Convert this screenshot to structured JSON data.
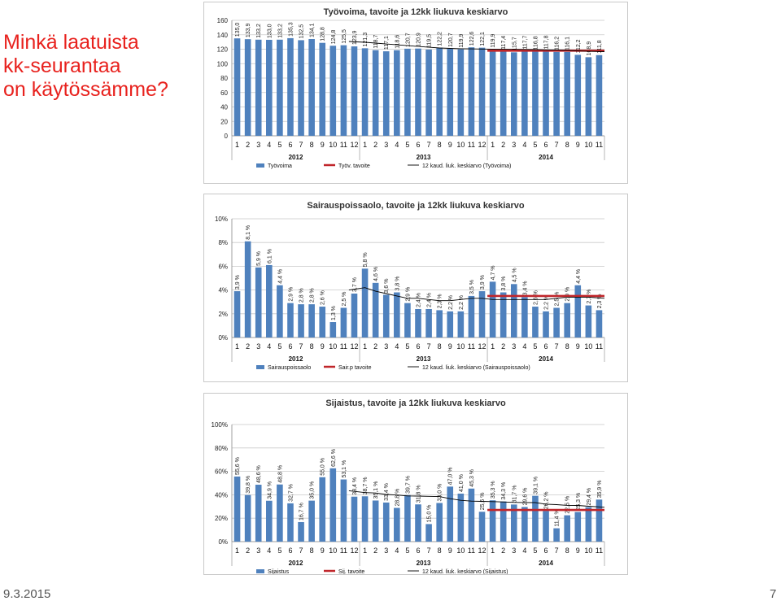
{
  "slide": {
    "title_lines": [
      "Minkä laatuista",
      "kk-seurantaa",
      "on käytössämme?"
    ],
    "date": "9.3.2015",
    "page_number": "7"
  },
  "colors": {
    "bar": "#4f81bd",
    "target": "#c0262b",
    "moving_average": "#000000",
    "grid": "#c9c9c9"
  },
  "chart_data": [
    {
      "type": "bar",
      "title": "Työvoima, tavoite ja 12kk liukuva keskiarvo",
      "months": [
        "1",
        "2",
        "3",
        "4",
        "5",
        "6",
        "7",
        "8",
        "9",
        "10",
        "11",
        "12",
        "1",
        "2",
        "3",
        "4",
        "5",
        "6",
        "7",
        "8",
        "9",
        "10",
        "11",
        "12",
        "1",
        "2",
        "3",
        "4",
        "5",
        "6",
        "7",
        "8",
        "9",
        "10",
        "11"
      ],
      "years": [
        {
          "label": "2012",
          "count": 12
        },
        {
          "label": "2013",
          "count": 12
        },
        {
          "label": "2014",
          "count": 11
        }
      ],
      "ylim": [
        0,
        160
      ],
      "yticks": [
        0,
        20,
        40,
        60,
        80,
        100,
        120,
        140,
        160
      ],
      "ytick_labels": [
        "0",
        "20",
        "40",
        "60",
        "80",
        "100",
        "120",
        "140",
        "160"
      ],
      "series": [
        {
          "name": "Työvoima",
          "kind": "bar",
          "values": [
            135.0,
            133.9,
            133.2,
            133.0,
            133.2,
            135.3,
            132.5,
            134.1,
            128.8,
            124.8,
            125.5,
            123.9,
            121.3,
            118.7,
            117.1,
            118.6,
            120.7,
            120.9,
            119.5,
            122.2,
            120.7,
            119.9,
            122.6,
            122.1,
            119.9,
            117.4,
            115.7,
            117.7,
            116.8,
            117.8,
            116.2,
            116.1,
            112.2,
            108.9,
            111.8
          ],
          "labels": [
            "135,0",
            "133,9",
            "133,2",
            "133,0",
            "133,2",
            "135,3",
            "132,5",
            "134,1",
            "128,8",
            "124,8",
            "125,5",
            "123,9",
            "121,3",
            "118,7",
            "117,1",
            "118,6",
            "120,7",
            "120,9",
            "119,5",
            "122,2",
            "120,7",
            "119,9",
            "122,6",
            "122,1",
            "119,9",
            "117,4",
            "115,7",
            "117,7",
            "116,8",
            "117,8",
            "116,2",
            "116,1",
            "112,2",
            "108,9",
            "111,8"
          ]
        },
        {
          "name": "Työv. tavoite",
          "kind": "line",
          "start_index": 24,
          "values": [
            118,
            118,
            118,
            118,
            118,
            118,
            118,
            118,
            118,
            118,
            118
          ]
        },
        {
          "name": "12 kaud. liuk. keskiarvo (Työvoima)",
          "kind": "line",
          "start_index": 11,
          "values": [
            130.7,
            129.6,
            128.4,
            127.2,
            126.1,
            125.0,
            123.8,
            122.7,
            121.7,
            121.1,
            120.7,
            120.4,
            120.2,
            120.1,
            119.9,
            119.8,
            119.7,
            119.4,
            119.1,
            118.8,
            118.2,
            117.6,
            117.1,
            116.6
          ]
        }
      ],
      "legend": [
        "Työvoima",
        "Työv. tavoite",
        "12 kaud. liuk. keskiarvo (Työvoima)"
      ]
    },
    {
      "type": "bar",
      "title": "Sairauspoissaolo, tavoite ja 12kk liukuva keskiarvo",
      "months": [
        "1",
        "2",
        "3",
        "4",
        "5",
        "6",
        "7",
        "8",
        "9",
        "10",
        "11",
        "12",
        "1",
        "2",
        "3",
        "4",
        "5",
        "6",
        "7",
        "8",
        "9",
        "10",
        "11",
        "12",
        "1",
        "2",
        "3",
        "4",
        "5",
        "6",
        "7",
        "8",
        "9",
        "10",
        "11"
      ],
      "years": [
        {
          "label": "2012",
          "count": 12
        },
        {
          "label": "2013",
          "count": 12
        },
        {
          "label": "2014",
          "count": 11
        }
      ],
      "ylim": [
        0,
        10
      ],
      "yticks": [
        0,
        2,
        4,
        6,
        8,
        10
      ],
      "ytick_labels": [
        "0%",
        "2%",
        "4%",
        "6%",
        "8%",
        "10%"
      ],
      "series": [
        {
          "name": "Sairauspoissaolo",
          "kind": "bar",
          "values": [
            3.9,
            8.1,
            5.9,
            6.1,
            4.4,
            2.9,
            2.8,
            2.8,
            2.6,
            1.3,
            2.5,
            3.7,
            5.8,
            4.6,
            3.6,
            3.8,
            2.9,
            2.4,
            2.4,
            2.3,
            2.2,
            2.2,
            3.5,
            3.9,
            4.7,
            3.8,
            4.5,
            3.4,
            2.6,
            2.2,
            2.5,
            2.9,
            4.4,
            2.7,
            2.3
          ],
          "labels": [
            "3,9 %",
            "8,1 %",
            "5,9 %",
            "6,1 %",
            "4,4 %",
            "2,9 %",
            "2,8 %",
            "2,8 %",
            "2,6 %",
            "1,3 %",
            "2,5 %",
            "3,7 %",
            "5,8 %",
            "4,6 %",
            "3,6 %",
            "3,8 %",
            "2,9 %",
            "2,4 %",
            "2,4 %",
            "2,3 %",
            "2,2 %",
            "2,2 %",
            "3,5 %",
            "3,9 %",
            "4,7 %",
            "3,8 %",
            "4,5 %",
            "3,4 %",
            "2,6 %",
            "2,2 %",
            "2,5 %",
            "2,9 %",
            "4,4 %",
            "2,7 %",
            "2,3 %"
          ]
        },
        {
          "name": "Sair.p tavoite",
          "kind": "line",
          "start_index": 24,
          "values": [
            3.5,
            3.5,
            3.5,
            3.5,
            3.5,
            3.5,
            3.5,
            3.5,
            3.5,
            3.5,
            3.5
          ]
        },
        {
          "name": "12 kaud. liuk. keskiarvo (Sairauspoissaolo)",
          "kind": "line",
          "start_index": 11,
          "values": [
            4.0,
            4.2,
            3.9,
            3.7,
            3.5,
            3.3,
            3.3,
            3.2,
            3.1,
            3.1,
            3.2,
            3.3,
            3.3,
            3.2,
            3.2,
            3.2,
            3.2,
            3.2,
            3.2,
            3.3,
            3.4,
            3.4,
            3.4,
            3.3
          ]
        }
      ],
      "legend": [
        "Sairauspoissaolo",
        "Sair.p tavoite",
        "12 kaud. liuk. keskiarvo (Sairauspoissaolo)"
      ]
    },
    {
      "type": "bar",
      "title": "Sijaistus, tavoite ja 12kk liukuva keskiarvo",
      "months": [
        "1",
        "2",
        "3",
        "4",
        "5",
        "6",
        "7",
        "8",
        "9",
        "10",
        "11",
        "12",
        "1",
        "2",
        "3",
        "4",
        "5",
        "6",
        "7",
        "8",
        "9",
        "10",
        "11",
        "12",
        "1",
        "2",
        "3",
        "4",
        "5",
        "6",
        "7",
        "8",
        "9",
        "10",
        "11"
      ],
      "years": [
        {
          "label": "2012",
          "count": 12
        },
        {
          "label": "2013",
          "count": 12
        },
        {
          "label": "2014",
          "count": 11
        }
      ],
      "ylim": [
        0,
        100
      ],
      "yticks": [
        0,
        20,
        40,
        60,
        80,
        100
      ],
      "ytick_labels": [
        "0%",
        "20%",
        "40%",
        "60%",
        "80%",
        "100%"
      ],
      "series": [
        {
          "name": "Sijaistus",
          "kind": "bar",
          "values": [
            55.6,
            39.8,
            48.6,
            34.9,
            48.8,
            32.7,
            16.7,
            35.0,
            55.0,
            62.6,
            53.1,
            38.4,
            38.7,
            35.1,
            33.4,
            28.8,
            39.7,
            31.8,
            15.0,
            33.0,
            47.0,
            41.0,
            45.3,
            25.5,
            35.3,
            34.3,
            31.7,
            29.6,
            39.1,
            26.2,
            11.4,
            22.5,
            25.3,
            29.4,
            35.9
          ],
          "labels": [
            "55,6 %",
            "39,8 %",
            "48,6 %",
            "34,9 %",
            "48,8 %",
            "32,7 %",
            "16,7 %",
            "35,0 %",
            "55,0 %",
            "62,6 %",
            "53,1 %",
            "38,4 %",
            "38,7 %",
            "35,1 %",
            "33,4 %",
            "28,8 %",
            "39,7 %",
            "31,8 %",
            "15,0 %",
            "33,0 %",
            "47,0 %",
            "41,0 %",
            "45,3 %",
            "25,5 %",
            "35,3 %",
            "34,3 %",
            "31,7 %",
            "29,6 %",
            "39,1 %",
            "26,2 %",
            "11,4 %",
            "22,5 %",
            "25,3 %",
            "29,4 %",
            "35,9 %"
          ]
        },
        {
          "name": "Sij. tavoite",
          "kind": "line",
          "start_index": 24,
          "values": [
            27,
            27,
            27,
            27,
            27,
            27,
            27,
            27,
            27,
            27,
            27
          ]
        },
        {
          "name": "12 kaud. liuk. keskiarvo (Sijaistus)",
          "kind": "line",
          "start_index": 11,
          "values": [
            43.5,
            41.9,
            41.5,
            40.3,
            39.8,
            39.0,
            38.9,
            38.7,
            38.5,
            36.7,
            35.3,
            34.6,
            34.4,
            34.2,
            33.9,
            33.5,
            33.4,
            33.3,
            32.0,
            31.6,
            31.0,
            30.9,
            30.2,
            29.4
          ]
        }
      ],
      "legend": [
        "Sijaistus",
        "Sij. tavoite",
        "12 kaud. liuk. keskiarvo (Sijaistus)"
      ]
    }
  ]
}
